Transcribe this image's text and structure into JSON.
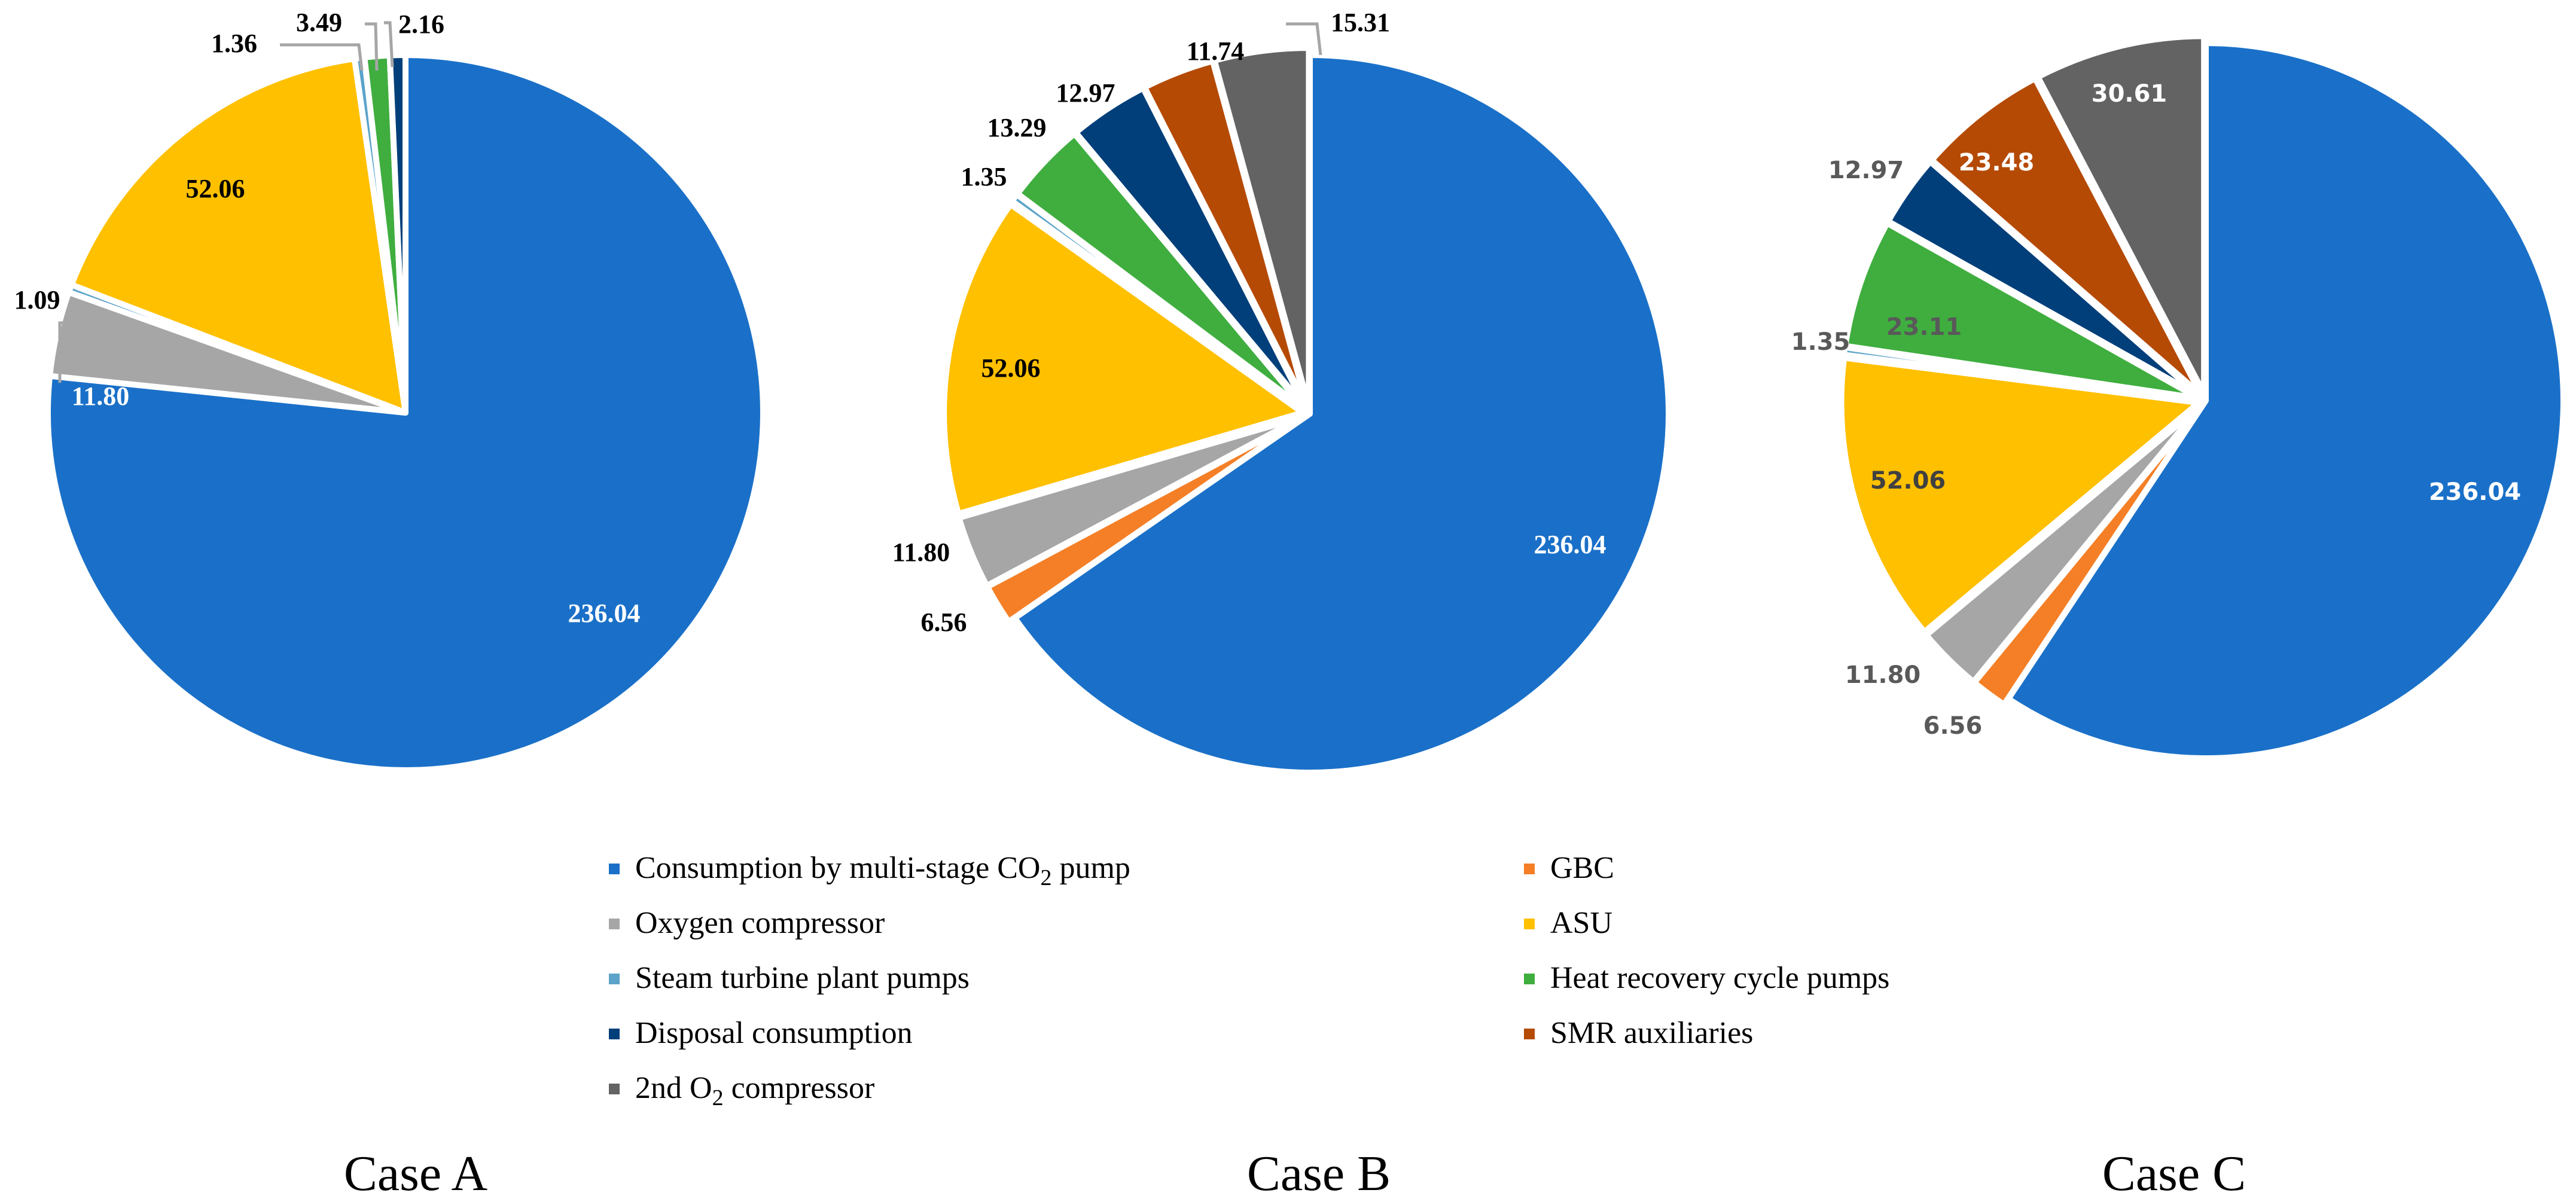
{
  "chart_data": [
    {
      "type": "pie",
      "title": "Case A",
      "start_angle_deg": 0,
      "direction": "clockwise",
      "slices": [
        {
          "category": "Consumption by multi-stage CO2 pump",
          "value": 236.04,
          "label": "236.04",
          "color": "#1a70c8",
          "label_color": "#ffffff"
        },
        {
          "category": "Oxygen compressor",
          "value": 11.8,
          "label": "11.80",
          "color": "#a6a6a6",
          "label_color": "#ffffff"
        },
        {
          "category": "Steam turbine plant pumps",
          "value": 1.09,
          "label": "1.09",
          "color": "#5ba3c9",
          "label_color": "#000000"
        },
        {
          "category": "ASU",
          "value": 52.06,
          "label": "52.06",
          "color": "#ffc000",
          "label_color": "#000000"
        },
        {
          "category": "Steam turbine plant pumps",
          "value": 1.36,
          "label": "1.36",
          "color": "#5ba3c9",
          "label_color": "#000000"
        },
        {
          "category": "Heat recovery cycle pumps",
          "value": 3.49,
          "label": "3.49",
          "color": "#3fae3f",
          "label_color": "#000000"
        },
        {
          "category": "Disposal consumption",
          "value": 2.16,
          "label": "2.16",
          "color": "#003f7a",
          "label_color": "#000000"
        }
      ]
    },
    {
      "type": "pie",
      "title": "Case B",
      "start_angle_deg": 0,
      "direction": "clockwise",
      "slices": [
        {
          "category": "Consumption by multi-stage CO2 pump",
          "value": 236.04,
          "label": "236.04",
          "color": "#1a70c8",
          "label_color": "#ffffff"
        },
        {
          "category": "GBC",
          "value": 6.56,
          "label": "6.56",
          "color": "#f47f26",
          "label_color": "#000000"
        },
        {
          "category": "Oxygen compressor",
          "value": 11.8,
          "label": "11.80",
          "color": "#a6a6a6",
          "label_color": "#000000"
        },
        {
          "category": "ASU",
          "value": 52.06,
          "label": "52.06",
          "color": "#ffc000",
          "label_color": "#000000"
        },
        {
          "category": "Steam turbine plant pumps",
          "value": 1.35,
          "label": "1.35",
          "color": "#5ba3c9",
          "label_color": "#000000"
        },
        {
          "category": "Heat recovery cycle pumps",
          "value": 13.29,
          "label": "13.29",
          "color": "#3fae3f",
          "label_color": "#000000"
        },
        {
          "category": "Disposal consumption",
          "value": 12.97,
          "label": "12.97",
          "color": "#003f7a",
          "label_color": "#000000"
        },
        {
          "category": "SMR auxiliaries",
          "value": 11.74,
          "label": "11.74",
          "color": "#b54a05",
          "label_color": "#000000"
        },
        {
          "category": "2nd O2 compressor",
          "value": 15.31,
          "label": "15.31",
          "color": "#636363",
          "label_color": "#000000"
        }
      ]
    },
    {
      "type": "pie",
      "title": "Case C",
      "start_angle_deg": 0,
      "direction": "clockwise",
      "slices": [
        {
          "category": "Consumption by multi-stage CO2 pump",
          "value": 236.04,
          "label": "236.04",
          "color": "#1a70c8",
          "label_color": "#ffffff"
        },
        {
          "category": "GBC",
          "value": 6.56,
          "label": "6.56",
          "color": "#f47f26",
          "label_color": "#595959"
        },
        {
          "category": "Oxygen compressor",
          "value": 11.8,
          "label": "11.80",
          "color": "#a6a6a6",
          "label_color": "#595959"
        },
        {
          "category": "ASU",
          "value": 52.06,
          "label": "52.06",
          "color": "#ffc000",
          "label_color": "#404040"
        },
        {
          "category": "Steam turbine plant pumps",
          "value": 1.35,
          "label": "1.35",
          "color": "#5ba3c9",
          "label_color": "#595959"
        },
        {
          "category": "Heat recovery cycle pumps",
          "value": 23.11,
          "label": "23.11",
          "color": "#3fae3f",
          "label_color": "#595959"
        },
        {
          "category": "Disposal consumption",
          "value": 12.97,
          "label": "12.97",
          "color": "#003f7a",
          "label_color": "#595959"
        },
        {
          "category": "SMR auxiliaries",
          "value": 23.48,
          "label": "23.48",
          "color": "#b54a05",
          "label_color": "#ffffff"
        },
        {
          "category": "2nd O2 compressor",
          "value": 30.61,
          "label": "30.61",
          "color": "#636363",
          "label_color": "#ffffff"
        }
      ]
    }
  ],
  "legend": [
    {
      "pre": "Consumption by multi-stage CO",
      "sub": "2",
      "post": " pump",
      "color": "#1a70c8"
    },
    {
      "pre": "GBC",
      "sub": "",
      "post": "",
      "color": "#f47f26"
    },
    {
      "pre": "Oxygen compressor",
      "sub": "",
      "post": "",
      "color": "#a6a6a6"
    },
    {
      "pre": "ASU",
      "sub": "",
      "post": "",
      "color": "#ffc000"
    },
    {
      "pre": "Steam turbine plant pumps",
      "sub": "",
      "post": "",
      "color": "#5ba3c9"
    },
    {
      "pre": "Heat recovery cycle pumps",
      "sub": "",
      "post": "",
      "color": "#3fae3f"
    },
    {
      "pre": "Disposal consumption",
      "sub": "",
      "post": "",
      "color": "#003f7a"
    },
    {
      "pre": "SMR auxiliaries",
      "sub": "",
      "post": "",
      "color": "#b54a05"
    },
    {
      "pre": "2nd O",
      "sub": "2",
      "post": " compressor",
      "color": "#636363"
    }
  ]
}
